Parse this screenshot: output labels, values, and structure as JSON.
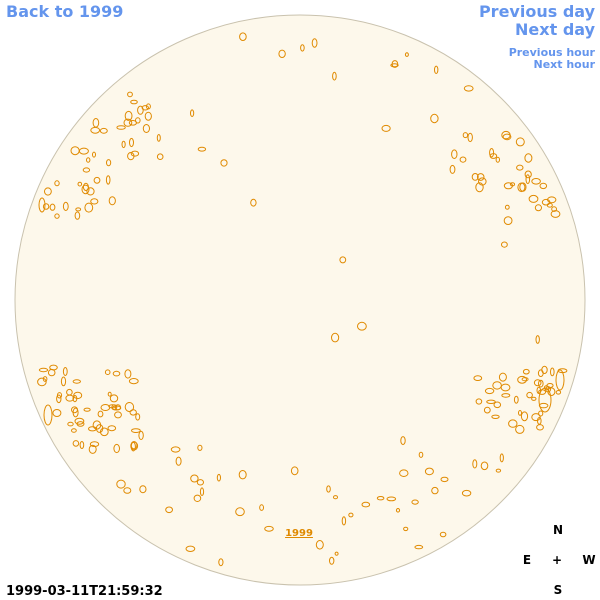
{
  "header": {
    "back_link": "Back to 1999",
    "previous_day": "Previous day",
    "next_day": "Next day",
    "previous_hour": "Previous hour",
    "next_hour": "Next hour"
  },
  "disk": {
    "year_label": "1999"
  },
  "timestamp": "1999-03-11T21:59:32",
  "compass": {
    "north": "N",
    "east": "E",
    "center": "+",
    "west": "W",
    "south": "S"
  }
}
